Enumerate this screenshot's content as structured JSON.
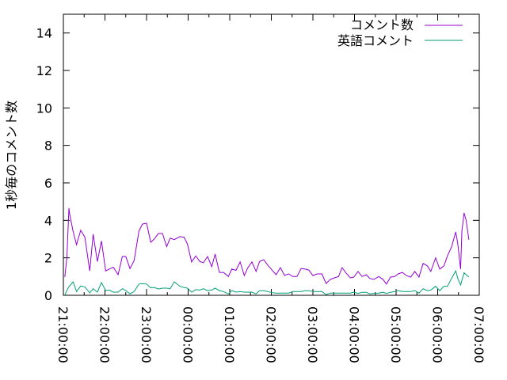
{
  "chart_data": {
    "type": "line",
    "title": "",
    "xlabel": "",
    "ylabel": "1秒毎のコメント数",
    "ylim": [
      0,
      15
    ],
    "yticks": [
      "0",
      "2",
      "4",
      "6",
      "8",
      "10",
      "12",
      "14"
    ],
    "xlim": [
      "21:00:00",
      "07:00:00"
    ],
    "xticks": [
      "21:00:00",
      "22:00:00",
      "23:00:00",
      "00:00:00",
      "01:00:00",
      "02:00:00",
      "03:00:00",
      "04:00:00",
      "05:00:00",
      "06:00:00",
      "07:00:00"
    ],
    "grid": false,
    "legend_position": "top-right",
    "x": [
      "21:02",
      "21:05",
      "21:08",
      "21:09",
      "21:14",
      "21:19",
      "21:25",
      "21:31",
      "21:38",
      "21:43",
      "21:49",
      "21:55",
      "22:01",
      "22:06",
      "22:12",
      "22:19",
      "22:25",
      "22:30",
      "22:36",
      "22:42",
      "22:49",
      "22:54",
      "23:00",
      "23:06",
      "23:11",
      "23:17",
      "23:23",
      "23:29",
      "23:34",
      "23:40",
      "23:48",
      "23:54",
      "23:59",
      "00:05",
      "00:11",
      "00:17",
      "00:22",
      "00:28",
      "00:34",
      "00:39",
      "00:45",
      "00:51",
      "00:58",
      "01:03",
      "01:09",
      "01:15",
      "01:21",
      "01:26",
      "01:32",
      "01:38",
      "01:43",
      "01:49",
      "01:55",
      "02:02",
      "02:07",
      "02:13",
      "02:19",
      "02:25",
      "02:31",
      "02:37",
      "02:43",
      "02:49",
      "02:54",
      "03:00",
      "03:06",
      "03:13",
      "03:19",
      "03:25",
      "03:31",
      "03:37",
      "03:42",
      "03:48",
      "03:54",
      "03:59",
      "04:05",
      "04:11",
      "04:17",
      "04:22",
      "04:28",
      "04:35",
      "04:41",
      "04:46",
      "04:52",
      "04:58",
      "05:03",
      "05:09",
      "05:15",
      "05:21",
      "05:27",
      "05:33",
      "05:39",
      "05:45",
      "05:50",
      "05:57",
      "06:03",
      "06:09",
      "06:14",
      "06:20",
      "06:26",
      "06:29",
      "06:33",
      "06:35",
      "06:38",
      "06:41",
      "06:45"
    ],
    "series": [
      {
        "name": "コメント数",
        "color": "#9400d3",
        "values": [
          0.97,
          2.0,
          4.65,
          4.35,
          3.4,
          2.7,
          3.47,
          3.1,
          1.3,
          3.26,
          1.8,
          2.9,
          1.3,
          1.4,
          1.5,
          1.1,
          2.07,
          2.07,
          1.43,
          1.85,
          3.43,
          3.8,
          3.85,
          2.83,
          3.0,
          3.3,
          3.3,
          2.6,
          3.05,
          2.97,
          3.13,
          3.1,
          2.74,
          1.78,
          2.1,
          1.8,
          1.74,
          2.07,
          1.53,
          2.2,
          1.22,
          1.22,
          1.0,
          1.4,
          1.33,
          1.78,
          1.05,
          1.47,
          1.78,
          1.27,
          1.8,
          1.9,
          1.6,
          1.3,
          1.1,
          1.48,
          1.06,
          1.14,
          1.0,
          1.0,
          1.43,
          1.4,
          1.35,
          1.05,
          1.14,
          1.14,
          0.63,
          0.85,
          0.93,
          1.0,
          1.48,
          1.18,
          0.93,
          0.97,
          1.27,
          1.0,
          1.1,
          0.9,
          0.85,
          1.0,
          0.85,
          0.6,
          0.97,
          1.0,
          1.14,
          1.22,
          1.05,
          0.97,
          1.27,
          0.97,
          1.7,
          1.57,
          1.27,
          2.0,
          1.4,
          1.57,
          2.1,
          2.58,
          3.38,
          2.74,
          1.4,
          3.43,
          4.4,
          4.0,
          2.96
        ]
      },
      {
        "name": "英語コメント",
        "color": "#009e73",
        "values": [
          0.0,
          0.25,
          0.47,
          0.5,
          0.72,
          0.2,
          0.5,
          0.45,
          0.13,
          0.35,
          0.17,
          0.68,
          0.25,
          0.28,
          0.17,
          0.17,
          0.35,
          0.25,
          0.08,
          0.2,
          0.6,
          0.62,
          0.6,
          0.4,
          0.42,
          0.34,
          0.38,
          0.38,
          0.35,
          0.72,
          0.48,
          0.42,
          0.38,
          0.17,
          0.3,
          0.28,
          0.35,
          0.25,
          0.28,
          0.38,
          0.25,
          0.2,
          0.07,
          0.25,
          0.17,
          0.2,
          0.17,
          0.17,
          0.17,
          0.07,
          0.25,
          0.25,
          0.2,
          0.13,
          0.12,
          0.12,
          0.12,
          0.12,
          0.2,
          0.2,
          0.2,
          0.25,
          0.25,
          0.2,
          0.2,
          0.2,
          0.04,
          0.12,
          0.12,
          0.12,
          0.12,
          0.12,
          0.12,
          0.16,
          0.1,
          0.16,
          0.16,
          0.07,
          0.1,
          0.12,
          0.16,
          0.1,
          0.16,
          0.2,
          0.25,
          0.2,
          0.2,
          0.2,
          0.25,
          0.12,
          0.35,
          0.25,
          0.28,
          0.48,
          0.25,
          0.48,
          0.48,
          0.9,
          1.3,
          0.9,
          0.55,
          0.8,
          1.2,
          1.1,
          0.97
        ]
      }
    ]
  }
}
